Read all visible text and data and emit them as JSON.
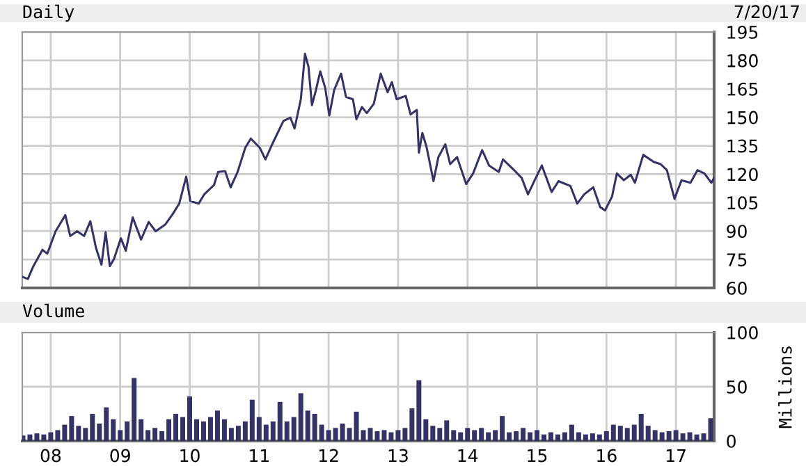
{
  "chart_data": [
    {
      "type": "line",
      "title": "Daily",
      "annotations": [
        "7/20/17"
      ],
      "series": [
        {
          "color": "#333366",
          "x": [
            2007.59,
            2007.67,
            2007.75,
            2007.88,
            2007.95,
            2008.07,
            2008.21,
            2008.28,
            2008.38,
            2008.48,
            2008.57,
            2008.65,
            2008.73,
            2008.79,
            2008.85,
            2008.91,
            2009.01,
            2009.08,
            2009.18,
            2009.3,
            2009.41,
            2009.51,
            2009.65,
            2009.76,
            2009.85,
            2009.95,
            2010.01,
            2010.13,
            2010.21,
            2010.35,
            2010.41,
            2010.51,
            2010.59,
            2010.69,
            2010.8,
            2010.88,
            2011.01,
            2011.09,
            2011.21,
            2011.35,
            2011.45,
            2011.51,
            2011.6,
            2011.66,
            2011.71,
            2011.76,
            2011.81,
            2011.88,
            2011.95,
            2012.01,
            2012.08,
            2012.18,
            2012.25,
            2012.35,
            2012.4,
            2012.48,
            2012.55,
            2012.65,
            2012.75,
            2012.85,
            2012.91,
            2012.98,
            2013.11,
            2013.18,
            2013.27,
            2013.3,
            2013.35,
            2013.41,
            2013.51,
            2013.58,
            2013.68,
            2013.75,
            2013.85,
            2013.98,
            2014.08,
            2014.21,
            2014.31,
            2014.45,
            2014.51,
            2014.65,
            2014.78,
            2014.87,
            2014.95,
            2015.07,
            2015.21,
            2015.31,
            2015.48,
            2015.58,
            2015.68,
            2015.81,
            2015.91,
            2015.98,
            2016.08,
            2016.15,
            2016.25,
            2016.35,
            2016.41,
            2016.53,
            2016.68,
            2016.78,
            2016.87,
            2016.98,
            2017.08,
            2017.21,
            2017.31,
            2017.41,
            2017.51,
            2017.55
          ],
          "values": [
            65.9,
            64.7,
            71.5,
            80.1,
            78.1,
            89.9,
            98.4,
            87.4,
            89.9,
            87.4,
            95.2,
            81.3,
            72.3,
            89.4,
            71.5,
            75.2,
            86.2,
            79.6,
            97.2,
            85.5,
            94.8,
            89.9,
            93.5,
            99.2,
            104.5,
            118.7,
            105.8,
            104.5,
            109.4,
            114.3,
            121.2,
            121.6,
            113.1,
            121.2,
            133.9,
            138.8,
            133.9,
            127.8,
            137.5,
            148.1,
            149.8,
            144.1,
            159.5,
            183.5,
            176.7,
            156.4,
            163.2,
            174.2,
            165.7,
            151,
            164.4,
            173,
            160.8,
            159.5,
            149,
            155.4,
            152.2,
            157.1,
            173,
            163.2,
            168.6,
            159.5,
            161.3,
            151.5,
            153.9,
            131.4,
            141.7,
            134.4,
            116.3,
            129,
            135.8,
            125.3,
            129,
            114.8,
            120.4,
            132.7,
            124.6,
            121.2,
            127.8,
            122.9,
            118,
            109.4,
            115.5,
            124.6,
            110.6,
            116.3,
            113.8,
            104.5,
            109.4,
            113.1,
            102.6,
            100.9,
            108.2,
            120.4,
            116.8,
            119.7,
            115.5,
            130.2,
            126.5,
            125.3,
            122.1,
            107,
            116.8,
            115.5,
            122.1,
            120.4,
            115.5,
            118
          ]
        }
      ],
      "xlim": [
        2007.59,
        2017.55
      ],
      "xticks": [
        {
          "value": 2008,
          "label": null
        },
        {
          "value": 2009,
          "label": null
        },
        {
          "value": 2010,
          "label": null
        },
        {
          "value": 2011,
          "label": null
        },
        {
          "value": 2012,
          "label": null
        },
        {
          "value": 2013,
          "label": null
        },
        {
          "value": 2014,
          "label": null
        },
        {
          "value": 2015,
          "label": null
        },
        {
          "value": 2016,
          "label": null
        },
        {
          "value": 2017,
          "label": null
        }
      ],
      "ylim": [
        60,
        195
      ],
      "yticks": [
        60,
        75,
        90,
        105,
        120,
        135,
        150,
        165,
        180,
        195
      ],
      "grid": true,
      "tick_labels": "y"
    },
    {
      "type": "bar",
      "title": "Volume",
      "ylabel": "Millions",
      "series": [
        {
          "color": "#333366",
          "x": [
            2007.6,
            2007.7,
            2007.8,
            2007.9,
            2008.0,
            2008.1,
            2008.2,
            2008.3,
            2008.4,
            2008.5,
            2008.6,
            2008.7,
            2008.8,
            2008.9,
            2009.0,
            2009.1,
            2009.2,
            2009.3,
            2009.4,
            2009.5,
            2009.6,
            2009.7,
            2009.8,
            2009.9,
            2010.0,
            2010.1,
            2010.2,
            2010.3,
            2010.4,
            2010.5,
            2010.6,
            2010.7,
            2010.8,
            2010.9,
            2011.0,
            2011.1,
            2011.2,
            2011.3,
            2011.4,
            2011.5,
            2011.6,
            2011.7,
            2011.8,
            2011.9,
            2012.0,
            2012.1,
            2012.2,
            2012.3,
            2012.4,
            2012.5,
            2012.6,
            2012.7,
            2012.8,
            2012.9,
            2013.0,
            2013.1,
            2013.2,
            2013.3,
            2013.4,
            2013.5,
            2013.6,
            2013.7,
            2013.8,
            2013.9,
            2014.0,
            2014.1,
            2014.2,
            2014.3,
            2014.4,
            2014.5,
            2014.6,
            2014.7,
            2014.8,
            2014.9,
            2015.0,
            2015.1,
            2015.2,
            2015.3,
            2015.4,
            2015.5,
            2015.6,
            2015.7,
            2015.8,
            2015.9,
            2016.0,
            2016.1,
            2016.2,
            2016.3,
            2016.4,
            2016.5,
            2016.6,
            2016.7,
            2016.8,
            2016.9,
            2017.0,
            2017.1,
            2017.2,
            2017.3,
            2017.4,
            2017.5
          ],
          "values": [
            5,
            6,
            7,
            6,
            8,
            10,
            15,
            23,
            14,
            12,
            25,
            16,
            31,
            20,
            10,
            18,
            58,
            20,
            10,
            12,
            9,
            20,
            25,
            22,
            41,
            20,
            18,
            22,
            28,
            20,
            12,
            14,
            18,
            38,
            22,
            15,
            18,
            36,
            18,
            22,
            44,
            28,
            25,
            15,
            10,
            12,
            16,
            12,
            27,
            10,
            12,
            9,
            10,
            8,
            10,
            12,
            30,
            56,
            20,
            14,
            12,
            19,
            10,
            8,
            12,
            10,
            12,
            8,
            10,
            23,
            8,
            9,
            12,
            8,
            10,
            6,
            8,
            6,
            8,
            15,
            8,
            6,
            7,
            6,
            9,
            15,
            14,
            12,
            15,
            25,
            14,
            10,
            8,
            9,
            10,
            7,
            8,
            6,
            7,
            21
          ]
        }
      ],
      "xlim": [
        2007.59,
        2017.55
      ],
      "xticks": [
        {
          "value": 2008,
          "label": "08"
        },
        {
          "value": 2009,
          "label": "09"
        },
        {
          "value": 2010,
          "label": "10"
        },
        {
          "value": 2011,
          "label": "11"
        },
        {
          "value": 2012,
          "label": "12"
        },
        {
          "value": 2013,
          "label": "13"
        },
        {
          "value": 2014,
          "label": "14"
        },
        {
          "value": 2015,
          "label": "15"
        },
        {
          "value": 2016,
          "label": "16"
        },
        {
          "value": 2017,
          "label": "17"
        }
      ],
      "ylim": [
        0,
        100
      ],
      "yticks": [
        0,
        50,
        100
      ],
      "grid": true
    }
  ]
}
